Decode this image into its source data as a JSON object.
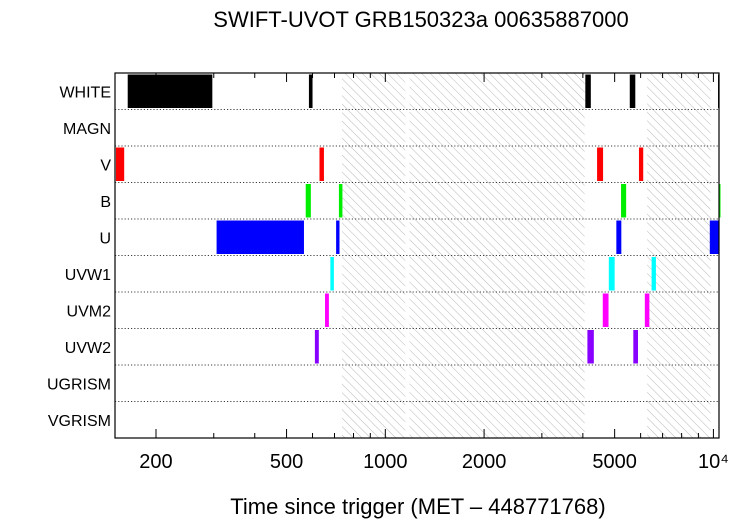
{
  "chart_data": {
    "type": "timeline",
    "title": "SWIFT-UVOT GRB150323a 00635887000",
    "xlabel": "Time since trigger (MET – 448771768)",
    "ylabel": "",
    "xscale": "log",
    "xlim": [
      150,
      10400
    ],
    "x_ticks": [
      {
        "value": 200,
        "label": "200"
      },
      {
        "value": 500,
        "label": "500"
      },
      {
        "value": 1000,
        "label": "1000"
      },
      {
        "value": 2000,
        "label": "2000"
      },
      {
        "value": 5000,
        "label": "5000"
      },
      {
        "value": 10000,
        "label": "10⁴"
      }
    ],
    "filters": [
      "WHITE",
      "MAGN",
      "V",
      "B",
      "U",
      "UVW1",
      "UVM2",
      "UVW2",
      "UGRISM",
      "VGRISM"
    ],
    "colors": {
      "WHITE": "#000000",
      "MAGN": "#888888",
      "V": "#ff0000",
      "B": "#00ee00",
      "U": "#0000ff",
      "UVW1": "#00ffff",
      "UVM2": "#ff00ff",
      "UVW2": "#8800ff",
      "UGRISM": "#444444",
      "VGRISM": "#444444"
    },
    "gaps": [
      [
        738,
        1150
      ],
      [
        1185,
        4050
      ],
      [
        6280,
        9800
      ]
    ],
    "exposures": [
      {
        "filter": "WHITE",
        "start": 164,
        "end": 297
      },
      {
        "filter": "WHITE",
        "start": 585,
        "end": 600
      },
      {
        "filter": "WHITE",
        "start": 4070,
        "end": 4230
      },
      {
        "filter": "WHITE",
        "start": 5560,
        "end": 5780
      },
      {
        "filter": "WHITE",
        "start": 10330,
        "end": 10450
      },
      {
        "filter": "V",
        "start": 151,
        "end": 160
      },
      {
        "filter": "V",
        "start": 630,
        "end": 650
      },
      {
        "filter": "V",
        "start": 4420,
        "end": 4610
      },
      {
        "filter": "V",
        "start": 5930,
        "end": 6110
      },
      {
        "filter": "B",
        "start": 572,
        "end": 593
      },
      {
        "filter": "B",
        "start": 722,
        "end": 740
      },
      {
        "filter": "B",
        "start": 5230,
        "end": 5420
      },
      {
        "filter": "B",
        "start": 10750,
        "end": 11800
      },
      {
        "filter": "U",
        "start": 306,
        "end": 565
      },
      {
        "filter": "U",
        "start": 708,
        "end": 725
      },
      {
        "filter": "U",
        "start": 5060,
        "end": 5240
      },
      {
        "filter": "U",
        "start": 9750,
        "end": 10800
      },
      {
        "filter": "UVW1",
        "start": 680,
        "end": 697
      },
      {
        "filter": "UVW1",
        "start": 4800,
        "end": 5000
      },
      {
        "filter": "UVW1",
        "start": 6480,
        "end": 6680
      },
      {
        "filter": "UVM2",
        "start": 655,
        "end": 673
      },
      {
        "filter": "UVM2",
        "start": 4600,
        "end": 4790
      },
      {
        "filter": "UVM2",
        "start": 6180,
        "end": 6380
      },
      {
        "filter": "UVW2",
        "start": 610,
        "end": 627
      },
      {
        "filter": "UVW2",
        "start": 4130,
        "end": 4320
      },
      {
        "filter": "UVW2",
        "start": 5700,
        "end": 5890
      }
    ],
    "grid": "dotted row separators",
    "legend": "none"
  }
}
